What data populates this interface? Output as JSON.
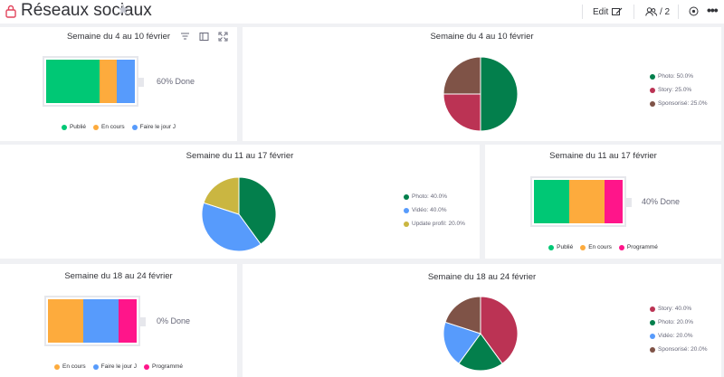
{
  "board": {
    "title": "Réseaux sociaux",
    "edit_label": "Edit",
    "members_label": "/ 2"
  },
  "colors": {
    "green_done": "#00c875",
    "orange_working": "#fdab3d",
    "blue_today": "#579bfc",
    "pink_scheduled": "#ff158a",
    "dark_green": "#037f4c",
    "crimson": "#bb3354",
    "brown": "#7f5347",
    "olive": "#cab641"
  },
  "icons": {
    "lock": "lock-icon",
    "star": "star-icon",
    "edit": "edit-icon",
    "people": "people-icon",
    "activity": "activity-icon",
    "more": "more-icon",
    "filter": "filter-icon",
    "sidebar": "sidebar-icon",
    "fullscreen": "fullscreen-icon"
  },
  "widgets": {
    "w1": {
      "title": "Semaine du 4 au 10 février",
      "done": "60% Done",
      "segments": [
        {
          "label": "Publié",
          "value": 60,
          "color": "#00c875"
        },
        {
          "label": "En cours",
          "value": 20,
          "color": "#fdab3d"
        },
        {
          "label": "Faire le jour J",
          "value": 20,
          "color": "#579bfc"
        }
      ]
    },
    "w2": {
      "title": "Semaine du 4 au 10 février",
      "slices": [
        {
          "label": "Photo: 50.0%",
          "value": 50,
          "color": "#037f4c"
        },
        {
          "label": "Story: 25.0%",
          "value": 25,
          "color": "#bb3354"
        },
        {
          "label": "Sponsorisé: 25.0%",
          "value": 25,
          "color": "#7f5347"
        }
      ]
    },
    "w3": {
      "title": "Semaine du 11 au 17 février",
      "slices": [
        {
          "label": "Photo: 40.0%",
          "value": 40,
          "color": "#037f4c"
        },
        {
          "label": "Vidéo: 40.0%",
          "value": 40,
          "color": "#579bfc"
        },
        {
          "label": "Update profil: 20.0%",
          "value": 20,
          "color": "#cab641"
        }
      ]
    },
    "w4": {
      "title": "Semaine du 11 au 17 février",
      "done": "40% Done",
      "segments": [
        {
          "label": "Publié",
          "value": 40,
          "color": "#00c875"
        },
        {
          "label": "En cours",
          "value": 40,
          "color": "#fdab3d"
        },
        {
          "label": "Programmé",
          "value": 20,
          "color": "#ff158a"
        }
      ]
    },
    "w5": {
      "title": "Semaine du 18 au 24 février",
      "done": "0% Done",
      "segments": [
        {
          "label": "En cours",
          "value": 40,
          "color": "#fdab3d"
        },
        {
          "label": "Faire le jour J",
          "value": 40,
          "color": "#579bfc"
        },
        {
          "label": "Programmé",
          "value": 20,
          "color": "#ff158a"
        }
      ]
    },
    "w6": {
      "title": "Semaine du 18 au 24 février",
      "slices": [
        {
          "label": "Story: 40.0%",
          "value": 40,
          "color": "#bb3354"
        },
        {
          "label": "Photo: 20.0%",
          "value": 20,
          "color": "#037f4c"
        },
        {
          "label": "Vidéo: 20.0%",
          "value": 20,
          "color": "#579bfc"
        },
        {
          "label": "Sponsorisé: 20.0%",
          "value": 20,
          "color": "#7f5347"
        }
      ]
    }
  }
}
